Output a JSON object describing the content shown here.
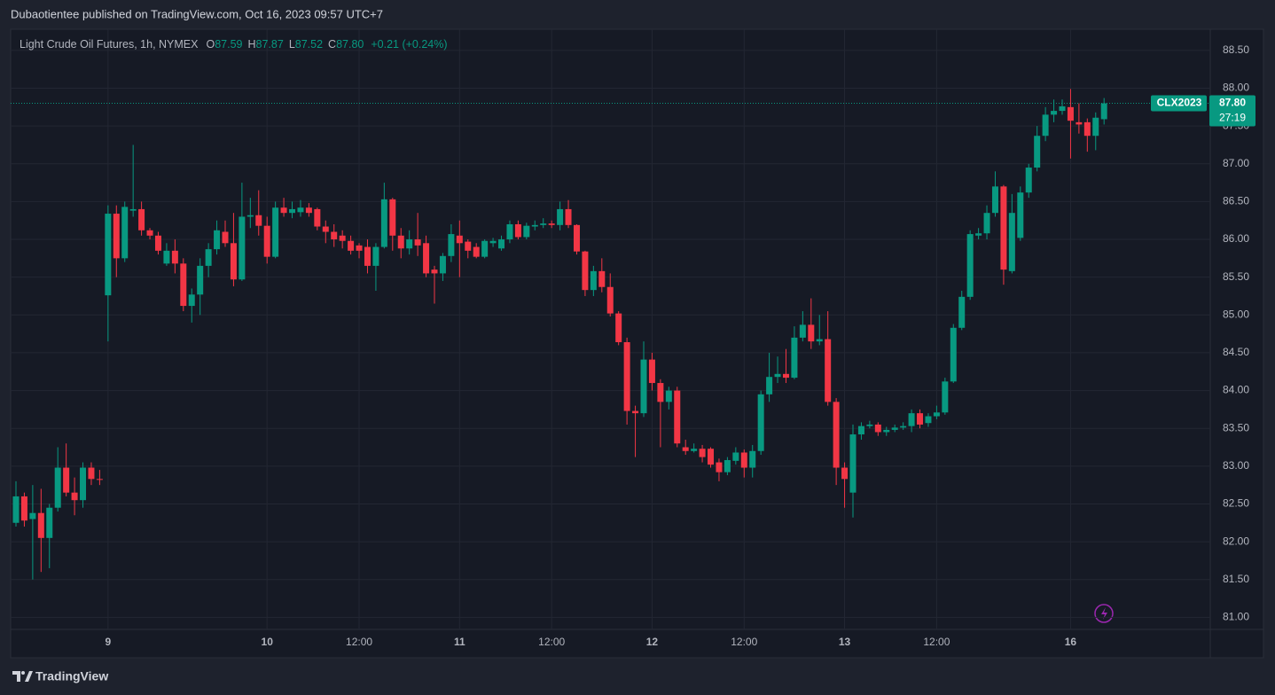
{
  "header": {
    "published": "Dubaotientee published on TradingView.com, Oct 16, 2023 09:57 UTC+7"
  },
  "footer": {
    "brand": "TradingView"
  },
  "chart_data": {
    "type": "candlestick",
    "legend": {
      "name": "Light Crude Oil Futures, 1h, NYMEX",
      "items": [
        {
          "key": "O",
          "value": "87.59"
        },
        {
          "key": "H",
          "value": "87.87"
        },
        {
          "key": "L",
          "value": "87.52"
        },
        {
          "key": "C",
          "value": "87.80"
        }
      ],
      "change": "+0.21 (+0.24%)"
    },
    "price_label": {
      "symbol": "CLX2023",
      "value": 87.8,
      "label": "87.80",
      "countdown": "27:19"
    },
    "up_color": "#089981",
    "down_color": "#f23645",
    "grid": true,
    "ylim": [
      80.84,
      88.78
    ],
    "yticks": [
      {
        "value": 81,
        "label": "81.00"
      },
      {
        "value": 81.5,
        "label": "81.50"
      },
      {
        "value": 82,
        "label": "82.00"
      },
      {
        "value": 82.5,
        "label": "82.50"
      },
      {
        "value": 83,
        "label": "83.00"
      },
      {
        "value": 83.5,
        "label": "83.50"
      },
      {
        "value": 84,
        "label": "84.00"
      },
      {
        "value": 84.5,
        "label": "84.50"
      },
      {
        "value": 85,
        "label": "85.00"
      },
      {
        "value": 85.5,
        "label": "85.50"
      },
      {
        "value": 86,
        "label": "86.00"
      },
      {
        "value": 86.5,
        "label": "86.50"
      },
      {
        "value": 87,
        "label": "87.00"
      },
      {
        "value": 87.5,
        "label": "87.50"
      },
      {
        "value": 88,
        "label": "88.00"
      },
      {
        "value": 88.5,
        "label": "88.50"
      }
    ],
    "categories": [
      null,
      null,
      null,
      null,
      null,
      null,
      null,
      null,
      null,
      null,
      null,
      "9",
      null,
      null,
      null,
      null,
      null,
      null,
      null,
      null,
      null,
      null,
      null,
      null,
      null,
      null,
      null,
      null,
      null,
      null,
      "10",
      null,
      null,
      null,
      null,
      null,
      null,
      null,
      null,
      null,
      null,
      "12:00",
      null,
      null,
      null,
      null,
      null,
      null,
      null,
      null,
      null,
      null,
      null,
      "11",
      null,
      null,
      null,
      null,
      null,
      null,
      null,
      null,
      null,
      null,
      "12:00",
      null,
      null,
      null,
      null,
      null,
      null,
      null,
      null,
      null,
      null,
      null,
      "12",
      null,
      null,
      null,
      null,
      null,
      null,
      null,
      null,
      null,
      null,
      "12:00",
      null,
      null,
      null,
      null,
      null,
      null,
      null,
      null,
      null,
      null,
      null,
      "13",
      null,
      null,
      null,
      null,
      null,
      null,
      null,
      null,
      null,
      null,
      "12:00",
      null,
      null,
      null,
      null,
      null,
      null,
      null,
      null,
      null,
      null,
      null,
      null,
      null,
      null,
      null,
      "16",
      null,
      null,
      null,
      null
    ],
    "open": [
      82.25,
      82.6,
      82.3,
      82.38,
      82.05,
      82.45,
      82.98,
      82.65,
      82.55,
      82.98,
      82.83,
      85.26,
      86.34,
      85.75,
      86.38,
      86.4,
      86.12,
      86.05,
      85.68,
      85.85,
      85.68,
      85.12,
      85.27,
      85.65,
      85.87,
      86.1,
      85.95,
      85.47,
      86.3,
      86.32,
      86.18,
      85.77,
      86.42,
      86.35,
      86.36,
      86.42,
      86.4,
      86.17,
      86.1,
      86.05,
      85.98,
      85.92,
      85.9,
      85.65,
      85.9,
      86.53,
      86.05,
      85.88,
      86.0,
      85.95,
      85.6,
      85.55,
      85.78,
      86.05,
      85.97,
      85.9,
      85.77,
      85.95,
      85.88,
      86.0,
      86.2,
      86.03,
      86.17,
      86.19,
      86.21,
      86.19,
      86.4,
      86.19,
      85.84,
      85.33,
      85.58,
      85.37,
      85.02,
      84.64,
      83.73,
      83.7,
      84.41,
      84.1,
      83.85,
      84.0,
      83.25,
      83.2,
      83.23,
      83.23,
      83.05,
      82.92,
      83.07,
      83.18,
      82.98,
      83.2,
      83.95,
      84.18,
      84.22,
      84.17,
      84.7,
      84.87,
      84.65,
      84.68,
      83.85,
      82.98,
      82.65,
      83.42,
      83.53,
      83.55,
      83.45,
      83.48,
      83.51,
      83.53,
      83.7,
      83.57,
      83.66,
      83.71,
      84.12,
      84.83,
      85.24,
      86.05,
      86.08,
      86.35,
      86.7,
      85.58,
      86.02,
      86.62,
      86.95,
      87.37,
      87.65,
      87.7,
      87.75,
      87.55,
      87.55,
      87.37,
      87.59
    ],
    "high": [
      82.8,
      82.65,
      82.75,
      82.7,
      82.5,
      83.25,
      83.3,
      82.85,
      83.05,
      83.05,
      82.95,
      86.45,
      86.45,
      86.5,
      87.25,
      86.5,
      86.15,
      86.1,
      85.95,
      86.0,
      85.75,
      85.35,
      85.75,
      85.95,
      86.25,
      86.25,
      86.35,
      86.75,
      86.55,
      86.65,
      86.3,
      86.5,
      86.55,
      86.5,
      86.52,
      86.48,
      86.42,
      86.25,
      86.2,
      86.12,
      86.05,
      85.95,
      86.0,
      85.95,
      86.75,
      86.55,
      86.15,
      86.12,
      86.35,
      86.05,
      85.65,
      85.82,
      86.2,
      86.25,
      86.0,
      85.95,
      86.0,
      86.02,
      86.05,
      86.25,
      86.25,
      86.22,
      86.25,
      86.28,
      86.25,
      86.5,
      86.52,
      86.2,
      85.85,
      85.65,
      85.75,
      85.55,
      85.05,
      84.7,
      83.8,
      84.65,
      84.5,
      84.15,
      84.05,
      84.05,
      83.35,
      83.3,
      83.28,
      83.25,
      83.1,
      83.12,
      83.25,
      83.22,
      83.28,
      84.0,
      84.5,
      84.45,
      84.55,
      84.85,
      85.05,
      85.22,
      85.0,
      85.05,
      83.9,
      83.05,
      83.55,
      83.58,
      83.6,
      83.58,
      83.52,
      83.55,
      83.58,
      83.75,
      83.75,
      83.7,
      83.8,
      84.17,
      84.88,
      85.32,
      86.12,
      86.15,
      86.45,
      86.9,
      86.72,
      86.6,
      86.7,
      87.0,
      87.5,
      87.75,
      87.85,
      87.85,
      87.99,
      87.8,
      87.6,
      87.68,
      87.87
    ],
    "low": [
      82.2,
      82.2,
      81.5,
      81.6,
      81.65,
      82.4,
      82.6,
      82.35,
      82.45,
      82.75,
      82.75,
      84.65,
      85.5,
      85.7,
      86.3,
      86.05,
      86.0,
      85.8,
      85.65,
      85.55,
      85.05,
      84.9,
      85.0,
      85.5,
      85.8,
      85.9,
      85.38,
      85.45,
      86.15,
      86.05,
      85.68,
      85.75,
      86.3,
      86.28,
      86.3,
      86.3,
      86.12,
      85.95,
      85.9,
      85.88,
      85.8,
      85.75,
      85.55,
      85.32,
      85.88,
      85.85,
      85.75,
      85.8,
      85.78,
      85.5,
      85.15,
      85.45,
      85.7,
      85.5,
      85.75,
      85.75,
      85.75,
      85.9,
      85.85,
      85.95,
      86.0,
      86.0,
      86.12,
      86.15,
      86.15,
      86.12,
      86.15,
      85.8,
      85.25,
      85.25,
      85.3,
      84.98,
      84.6,
      83.55,
      83.12,
      83.65,
      84.0,
      83.25,
      83.75,
      83.25,
      83.15,
      83.18,
      83.05,
      82.98,
      82.8,
      82.88,
      83.02,
      82.85,
      82.85,
      83.15,
      83.85,
      84.1,
      84.1,
      84.15,
      84.65,
      84.55,
      84.6,
      83.8,
      82.75,
      82.45,
      82.32,
      83.35,
      83.5,
      83.4,
      83.4,
      83.45,
      83.48,
      83.45,
      83.5,
      83.52,
      83.62,
      83.68,
      84.1,
      84.8,
      85.2,
      86.0,
      86.0,
      86.3,
      85.4,
      85.55,
      85.98,
      86.55,
      86.9,
      87.3,
      87.55,
      87.65,
      87.07,
      87.4,
      87.16,
      87.18,
      87.52
    ],
    "close": [
      82.6,
      82.28,
      82.38,
      82.05,
      82.45,
      82.98,
      82.65,
      82.55,
      82.98,
      82.83,
      82.82,
      86.34,
      85.75,
      86.43,
      86.4,
      86.12,
      86.05,
      85.85,
      85.85,
      85.68,
      85.12,
      85.27,
      85.65,
      85.87,
      86.12,
      85.95,
      85.47,
      86.3,
      86.32,
      86.18,
      85.77,
      86.42,
      86.35,
      86.4,
      86.42,
      86.35,
      86.17,
      86.1,
      86.0,
      85.98,
      85.85,
      85.85,
      85.65,
      85.9,
      86.53,
      86.05,
      85.88,
      86.0,
      85.92,
      85.55,
      85.55,
      85.78,
      86.07,
      85.95,
      85.85,
      85.77,
      85.98,
      85.98,
      86.0,
      86.2,
      86.03,
      86.18,
      86.19,
      86.21,
      86.19,
      86.4,
      86.19,
      85.84,
      85.33,
      85.58,
      85.37,
      85.02,
      84.64,
      83.73,
      83.7,
      84.41,
      84.1,
      83.85,
      84.0,
      83.3,
      83.2,
      83.23,
      83.12,
      83.02,
      82.92,
      83.08,
      83.18,
      82.98,
      83.2,
      83.95,
      84.18,
      84.22,
      84.17,
      84.7,
      84.87,
      84.65,
      84.68,
      83.85,
      82.98,
      82.83,
      83.42,
      83.53,
      83.55,
      83.45,
      83.48,
      83.51,
      83.53,
      83.7,
      83.55,
      83.66,
      83.71,
      84.12,
      84.83,
      85.24,
      86.07,
      86.08,
      86.35,
      86.7,
      85.6,
      86.35,
      86.62,
      86.95,
      87.37,
      87.65,
      87.7,
      87.76,
      87.57,
      87.52,
      87.37,
      87.61,
      87.8
    ]
  }
}
